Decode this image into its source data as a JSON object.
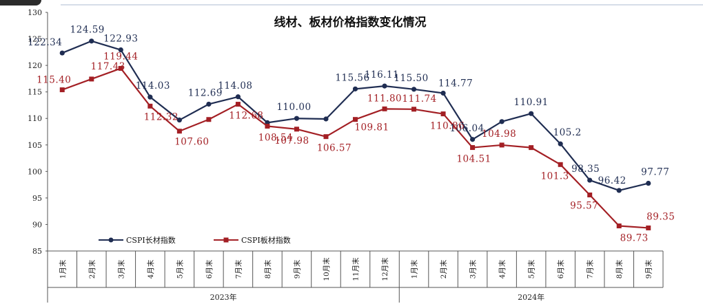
{
  "chart_data": {
    "type": "line",
    "title": "线材、板材价格指数变化情况",
    "ylim": [
      85,
      130
    ],
    "yticks": [
      85,
      90,
      95,
      100,
      105,
      110,
      115,
      120,
      125,
      130
    ],
    "categories": [
      "1月末",
      "2月末",
      "3月末",
      "4月末",
      "5月末",
      "6月末",
      "7月末",
      "8月末",
      "9月末",
      "10月末",
      "11月末",
      "12月末",
      "1月末",
      "2月末",
      "3月末",
      "4月末",
      "5月末",
      "6月末",
      "7月末",
      "8月末",
      "9月末"
    ],
    "year_groups": [
      {
        "label": "2023年",
        "count": 12
      },
      {
        "label": "2024年",
        "count": 9
      }
    ],
    "legend_position": "bottom-left",
    "grid": false,
    "series": [
      {
        "name": "CSPI长材指数",
        "color": "#1f2d52",
        "marker": "circle",
        "values": [
          122.34,
          124.59,
          122.93,
          114.03,
          109.7,
          112.69,
          114.08,
          109.2,
          110.0,
          109.9,
          115.56,
          116.11,
          115.5,
          114.77,
          106.04,
          109.4,
          110.91,
          105.2,
          98.35,
          96.42,
          97.77
        ],
        "labels": [
          "122.34",
          "124.59",
          "122.93",
          "114.03",
          "",
          "112.69",
          "114.08",
          "",
          "110.00",
          "",
          "115.56",
          "116.11",
          "115.50",
          "114.77",
          "106.04",
          "",
          "110.91",
          "105.2",
          "98.35",
          "96.42",
          "97.77"
        ]
      },
      {
        "name": "CSPI板材指数",
        "color": "#a31f24",
        "marker": "square",
        "values": [
          115.4,
          117.43,
          119.44,
          112.32,
          107.6,
          109.8,
          112.68,
          108.54,
          107.98,
          106.57,
          109.81,
          111.8,
          111.74,
          110.86,
          104.51,
          104.98,
          104.5,
          101.3,
          95.57,
          89.73,
          89.35
        ],
        "labels": [
          "115.40",
          "117.43",
          "119.44",
          "112.32",
          "107.60",
          "",
          "112.68",
          "108.54",
          "107.98",
          "106.57",
          "109.81",
          "111.80",
          "111.74",
          "110.86",
          "104.51",
          "104.98",
          "",
          "101.3",
          "95.57",
          "89.73",
          "89.35"
        ]
      }
    ]
  }
}
